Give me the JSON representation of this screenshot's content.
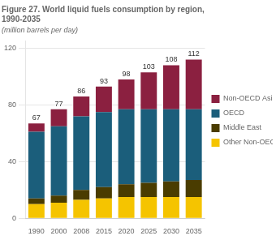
{
  "chart_data": {
    "type": "bar",
    "title": "Figure 27. World liquid fuels consumption by region,\n1990-2035",
    "subtitle": "(million barrels per day)",
    "categories": [
      "1990",
      "2000",
      "2008",
      "2015",
      "2020",
      "2025",
      "2030",
      "2035"
    ],
    "series": [
      {
        "name": "Other Non-OECD",
        "color": "#F5C400",
        "values": [
          10,
          11,
          13,
          14,
          15,
          15,
          15,
          15
        ]
      },
      {
        "name": "Middle East",
        "color": "#4A3C00",
        "values": [
          4,
          5,
          7,
          8,
          9,
          10,
          11,
          12
        ]
      },
      {
        "name": "OECD",
        "color": "#1B5E7B",
        "values": [
          47,
          49,
          52,
          53,
          53,
          52,
          51,
          50
        ]
      },
      {
        "name": "Non-OECD Asia",
        "color": "#8B2040",
        "values": [
          6,
          12,
          14,
          18,
          21,
          26,
          31,
          35
        ]
      }
    ],
    "totals": [
      67,
      77,
      86,
      93,
      98,
      103,
      108,
      112
    ],
    "stacked": true,
    "ylim": [
      0,
      125
    ],
    "yticks": [
      0,
      40,
      80,
      120
    ],
    "grid": true,
    "legend": "right"
  }
}
